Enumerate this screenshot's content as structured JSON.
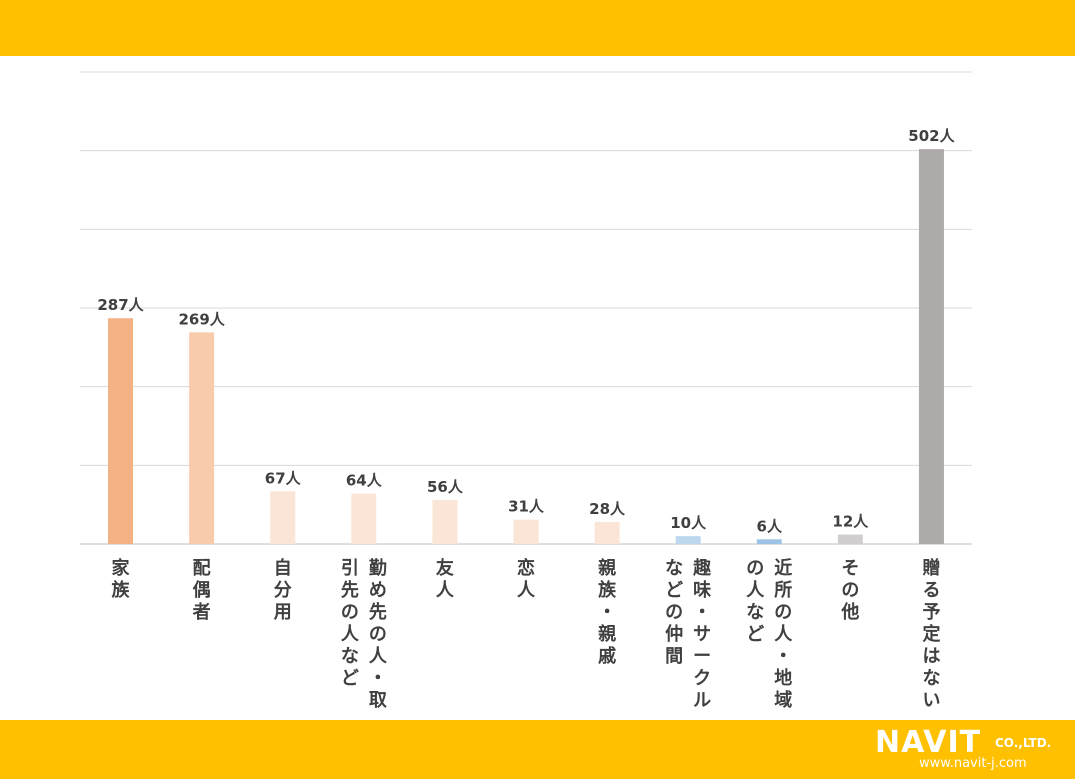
{
  "theme": {
    "bar_color": "#FFC000",
    "grid_color": "#d9d9d9",
    "text_color": "#404040"
  },
  "chart_data": {
    "type": "bar",
    "title": "",
    "xlabel": "",
    "ylabel": "",
    "ylim": [
      0,
      600
    ],
    "grid": true,
    "value_suffix": "人",
    "categories": [
      "家族",
      "配偶者",
      "自分用",
      "勤め先の人・取引先の人など",
      "友人",
      "恋人",
      "親族・親戚",
      "趣味・サークルなどの仲間",
      "近所の人・地域の人など",
      "その他",
      "贈る予定はない"
    ],
    "values": [
      287,
      269,
      67,
      64,
      56,
      31,
      28,
      10,
      6,
      12,
      502
    ],
    "colors": [
      "#F4B183",
      "#F8CBAD",
      "#FBE5D6",
      "#FBE5D6",
      "#FBE5D6",
      "#FBE5D6",
      "#FBE5D6",
      "#BDD7EE",
      "#9DC3E6",
      "#D0CECE",
      "#AEAAAA"
    ],
    "label_lines": [
      [
        "家族"
      ],
      [
        "配偶者"
      ],
      [
        "自分用"
      ],
      [
        "勤め先の人・取",
        "引先の人など"
      ],
      [
        "友人"
      ],
      [
        "恋人"
      ],
      [
        "親族・親戚"
      ],
      [
        "趣味・サークル",
        "などの仲間"
      ],
      [
        "近所の人・地域",
        "の人など"
      ],
      [
        "その他"
      ],
      [
        "贈る予定はない"
      ]
    ]
  },
  "logo": {
    "main": "NAVIT",
    "suffix": "CO.,LTD.",
    "url": "www.navit-j.com"
  }
}
